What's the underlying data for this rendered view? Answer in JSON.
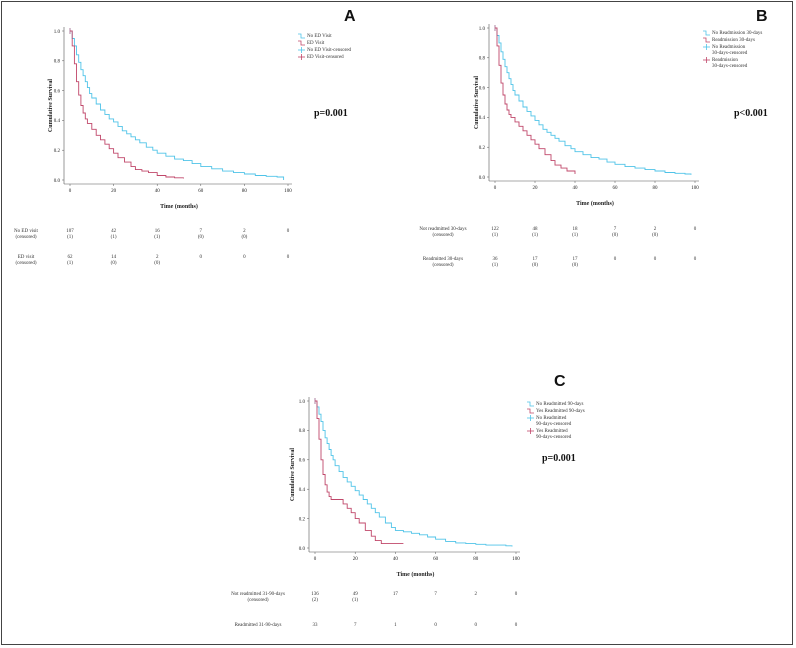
{
  "colors": {
    "group1": "#4fc3e8",
    "group2": "#c0476a",
    "axis": "#555555"
  },
  "chart_data": [
    {
      "panel": "A",
      "type": "line",
      "title": "A",
      "p_value": "p=0.001",
      "xlabel": "Time (months)",
      "ylabel": "Cumulative Survival",
      "xlim": [
        0,
        100
      ],
      "ylim": [
        0,
        1
      ],
      "x_ticks": [
        "0",
        "20",
        "40",
        "60",
        "80",
        "100"
      ],
      "y_ticks": [
        "0.0",
        "0.2",
        "0.4",
        "0.6",
        "0.8",
        "1.0"
      ],
      "legend": [
        "No ED Visit",
        "ED Visit",
        "No ED Visit-censored",
        "ED Visit-censored"
      ],
      "series": [
        {
          "name": "No ED Visit",
          "x": [
            0,
            1,
            2,
            3,
            4,
            5,
            6,
            7,
            8,
            9,
            10,
            12,
            14,
            16,
            18,
            20,
            22,
            24,
            26,
            28,
            30,
            32,
            35,
            38,
            40,
            44,
            48,
            52,
            56,
            60,
            65,
            70,
            75,
            80,
            85,
            90,
            95,
            98
          ],
          "y": [
            1.0,
            0.95,
            0.9,
            0.84,
            0.79,
            0.74,
            0.7,
            0.66,
            0.62,
            0.58,
            0.55,
            0.51,
            0.47,
            0.44,
            0.41,
            0.39,
            0.36,
            0.33,
            0.31,
            0.29,
            0.27,
            0.25,
            0.22,
            0.2,
            0.18,
            0.16,
            0.14,
            0.13,
            0.11,
            0.09,
            0.075,
            0.06,
            0.05,
            0.04,
            0.03,
            0.025,
            0.02,
            0.0
          ]
        },
        {
          "name": "ED Visit",
          "x": [
            0,
            1,
            2,
            3,
            4,
            5,
            6,
            7,
            8,
            10,
            12,
            14,
            16,
            18,
            20,
            22,
            25,
            28,
            30,
            33,
            36,
            40,
            44,
            48,
            52
          ],
          "y": [
            1.0,
            0.9,
            0.78,
            0.66,
            0.57,
            0.5,
            0.45,
            0.41,
            0.38,
            0.34,
            0.3,
            0.27,
            0.24,
            0.21,
            0.18,
            0.15,
            0.12,
            0.09,
            0.07,
            0.06,
            0.05,
            0.03,
            0.02,
            0.015,
            0.01
          ]
        }
      ],
      "risk_table": {
        "rows": [
          {
            "label": "No ED visit",
            "sublabel": "(censored)",
            "values": [
              "107",
              "42",
              "16",
              "7",
              "2",
              "0"
            ],
            "censored": [
              "(1)",
              "(1)",
              "(1)",
              "(0)",
              "(0)",
              ""
            ]
          },
          {
            "label": "ED visit",
            "sublabel": "(censored)",
            "values": [
              "62",
              "14",
              "2",
              "0",
              "0",
              "0"
            ],
            "censored": [
              "(1)",
              "(0)",
              "(0)",
              "",
              "",
              ""
            ]
          }
        ]
      }
    },
    {
      "panel": "B",
      "type": "line",
      "title": "B",
      "p_value": "p<0.001",
      "xlabel": "Time (months)",
      "ylabel": "Cumulative Survival",
      "xlim": [
        0,
        100
      ],
      "ylim": [
        0,
        1
      ],
      "x_ticks": [
        "0",
        "20",
        "40",
        "60",
        "80",
        "100"
      ],
      "y_ticks": [
        "0.0",
        "0.2",
        "0.4",
        "0.6",
        "0.8",
        "1.0"
      ],
      "legend": [
        "No Readmission 30-days",
        "Readmission 30-days",
        "No Readmission 30-days-censored",
        "Readmission 30-days-censored"
      ],
      "series": [
        {
          "name": "No Readmission 30-days",
          "x": [
            0,
            1,
            2,
            3,
            4,
            5,
            6,
            7,
            8,
            9,
            10,
            12,
            14,
            16,
            18,
            20,
            22,
            24,
            26,
            28,
            30,
            32,
            35,
            38,
            40,
            44,
            48,
            52,
            56,
            60,
            65,
            70,
            75,
            80,
            85,
            90,
            95,
            98
          ],
          "y": [
            1.0,
            0.95,
            0.9,
            0.84,
            0.79,
            0.74,
            0.7,
            0.66,
            0.62,
            0.58,
            0.55,
            0.51,
            0.47,
            0.44,
            0.41,
            0.38,
            0.35,
            0.32,
            0.3,
            0.28,
            0.26,
            0.24,
            0.21,
            0.19,
            0.17,
            0.15,
            0.13,
            0.12,
            0.1,
            0.085,
            0.07,
            0.06,
            0.05,
            0.04,
            0.03,
            0.025,
            0.02,
            0.015
          ]
        },
        {
          "name": "Readmission 30-days",
          "x": [
            0,
            1,
            2,
            3,
            4,
            5,
            6,
            7,
            8,
            10,
            12,
            14,
            16,
            18,
            20,
            22,
            25,
            28,
            30,
            33,
            36,
            40
          ],
          "y": [
            1.0,
            0.88,
            0.75,
            0.63,
            0.55,
            0.49,
            0.45,
            0.42,
            0.4,
            0.37,
            0.34,
            0.31,
            0.28,
            0.25,
            0.22,
            0.19,
            0.15,
            0.11,
            0.08,
            0.06,
            0.04,
            0.02
          ]
        }
      ],
      "risk_table": {
        "rows": [
          {
            "label": "Not readmitted 30-days",
            "sublabel": "(censored)",
            "values": [
              "122",
              "48",
              "18",
              "7",
              "2",
              "0"
            ],
            "censored": [
              "(1)",
              "(1)",
              "(1)",
              "(0)",
              "(0)",
              ""
            ]
          },
          {
            "label": "Readmitted 30-days",
            "sublabel": "(censored)",
            "values": [
              "36",
              "17",
              "17",
              "0",
              "0",
              "0"
            ],
            "censored": [
              "(1)",
              "(0)",
              "(0)",
              "",
              "",
              ""
            ]
          }
        ]
      }
    },
    {
      "panel": "C",
      "type": "line",
      "title": "C",
      "p_value": "p=0.001",
      "xlabel": "Time (months)",
      "ylabel": "Cumulative Survival",
      "xlim": [
        0,
        100
      ],
      "ylim": [
        0,
        1
      ],
      "x_ticks": [
        "0",
        "20",
        "40",
        "60",
        "80",
        "100"
      ],
      "y_ticks": [
        "0.0",
        "0.2",
        "0.4",
        "0.6",
        "0.8",
        "1.0"
      ],
      "legend": [
        "No Readmitted 90-days",
        "Yes Readmitted 90-days",
        "No Readmitted 90-days-censored",
        "Yes Readmitted 90-days-censored"
      ],
      "series": [
        {
          "name": "No Readmitted 90-days",
          "x": [
            0,
            1,
            2,
            3,
            4,
            5,
            6,
            7,
            8,
            9,
            10,
            12,
            14,
            16,
            18,
            20,
            22,
            24,
            26,
            28,
            30,
            32,
            35,
            38,
            40,
            44,
            48,
            52,
            56,
            60,
            65,
            70,
            75,
            80,
            85,
            90,
            95,
            98
          ],
          "y": [
            1.0,
            0.96,
            0.91,
            0.86,
            0.8,
            0.75,
            0.71,
            0.67,
            0.63,
            0.6,
            0.56,
            0.52,
            0.48,
            0.45,
            0.42,
            0.39,
            0.36,
            0.33,
            0.3,
            0.27,
            0.24,
            0.21,
            0.17,
            0.14,
            0.12,
            0.11,
            0.1,
            0.09,
            0.075,
            0.06,
            0.045,
            0.035,
            0.03,
            0.025,
            0.02,
            0.02,
            0.015,
            0.01
          ]
        },
        {
          "name": "Yes Readmitted 90-days",
          "x": [
            0,
            1,
            2,
            3,
            4,
            5,
            6,
            7,
            8,
            10,
            12,
            14,
            16,
            18,
            20,
            22,
            25,
            28,
            30,
            33,
            36,
            40,
            44
          ],
          "y": [
            1.0,
            0.88,
            0.74,
            0.6,
            0.5,
            0.43,
            0.38,
            0.35,
            0.33,
            0.33,
            0.33,
            0.3,
            0.27,
            0.24,
            0.2,
            0.17,
            0.12,
            0.08,
            0.05,
            0.03,
            0.03,
            0.03,
            0.03
          ]
        }
      ],
      "risk_table": {
        "rows": [
          {
            "label": "Not readmitted 31-90-days",
            "sublabel": "(censored)",
            "values": [
              "136",
              "49",
              "17",
              "7",
              "2",
              "0"
            ],
            "censored": [
              "(2)",
              "(1)",
              "",
              "",
              "",
              ""
            ]
          },
          {
            "label": "Readmitted 31-90-days",
            "sublabel": "",
            "values": [
              "33",
              "7",
              "1",
              "0",
              "0",
              "0"
            ],
            "censored": [
              "",
              "",
              "",
              "",
              "",
              ""
            ]
          }
        ]
      }
    }
  ]
}
